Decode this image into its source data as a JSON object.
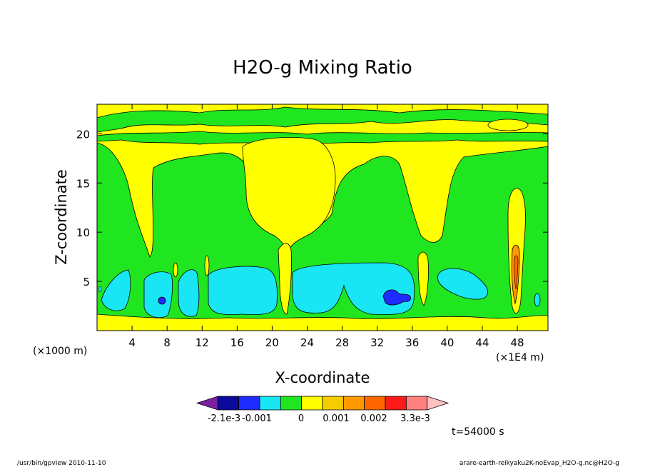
{
  "chart_data": {
    "type": "heatmap",
    "title": "H2O-g Mixing Ratio",
    "xlabel": "X-coordinate",
    "ylabel": "Z-coordinate",
    "x_unit_left": "(×1000 m)",
    "x_unit_right": "(×1E4 m)",
    "xlim": [
      0,
      51.5
    ],
    "ylim": [
      0,
      23
    ],
    "x_ticks": [
      4,
      8,
      12,
      16,
      20,
      24,
      28,
      32,
      36,
      40,
      44,
      48
    ],
    "y_ticks": [
      5,
      10,
      15,
      20
    ],
    "colorbar_labels": [
      "-2.1e-3",
      "-0.001",
      "0",
      "0.001",
      "0.002",
      "3.3e-3"
    ],
    "colorbar_colors": [
      "#7a1fa0",
      "#0a0a9c",
      "#1f2bff",
      "#19e6f5",
      "#1fe61f",
      "#ffff00",
      "#f5cc00",
      "#ff9900",
      "#ff6600",
      "#ff1a1a",
      "#ff8080",
      "#ffc0c0"
    ],
    "regions": [
      {
        "kind": "green-band",
        "desc": "upper green layer",
        "level": 0
      },
      {
        "kind": "cyan-cells",
        "level": -0.0005,
        "centers_x": [
          6,
          10.5,
          17,
          30.5,
          41.5
        ]
      },
      {
        "kind": "blue-cores",
        "level": -0.001,
        "centers_x": [
          7.5,
          33.5
        ]
      },
      {
        "kind": "yellow-updrafts",
        "level": 0.0005,
        "centers_x": [
          21.5,
          37,
          47
        ]
      },
      {
        "kind": "orange-core",
        "level": 0.0025,
        "center_x": 47.5
      }
    ]
  },
  "time_label": "t=54000 s",
  "footer_left": "/usr/bin/gpview   2010-11-10",
  "footer_right": "arare-earth-reikyaku2K-noEvap_H2O-g.nc@H2O-g"
}
